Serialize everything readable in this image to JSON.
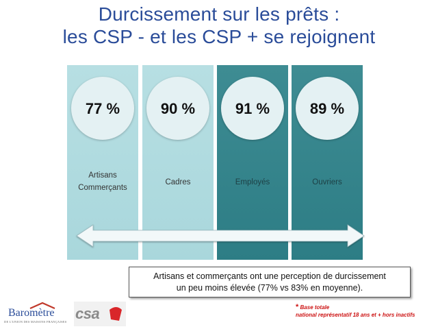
{
  "title": {
    "line1": "Durcissement sur les prêts :",
    "line2": "les CSP - et les CSP + se rejoignent"
  },
  "columns": [
    {
      "value": "77 %",
      "label_lines": [
        "Artisans",
        "Commerçants"
      ],
      "tone": "light"
    },
    {
      "value": "90 %",
      "label_lines": [
        "Cadres"
      ],
      "tone": "light"
    },
    {
      "value": "91 %",
      "label_lines": [
        "Employés"
      ],
      "tone": "dark"
    },
    {
      "value": "89 %",
      "label_lines": [
        "Ouvriers"
      ],
      "tone": "dark"
    }
  ],
  "colors": {
    "title": "#2a4c99",
    "light_column": "#b7dfe3",
    "dark_column": "#3e8c93",
    "circle": "#e4f1f3",
    "footnote": "#cc1111"
  },
  "arrow": {
    "icon": "double-headed-arrow-icon"
  },
  "note": {
    "line1": "Artisans et commerçants ont une perception de durcissement",
    "line2": "un peu moins élevée (77% vs 83% en moyenne)."
  },
  "footnote": {
    "star": "*",
    "line1": "Base totale",
    "line2": "national représentatif 18 ans et + hors inactifs"
  },
  "logos": {
    "barometre": {
      "word": "Baromètre",
      "sub": "DE L'UNION DES MAISONS FRANÇAISES"
    },
    "csa": {
      "word": "csa"
    }
  }
}
